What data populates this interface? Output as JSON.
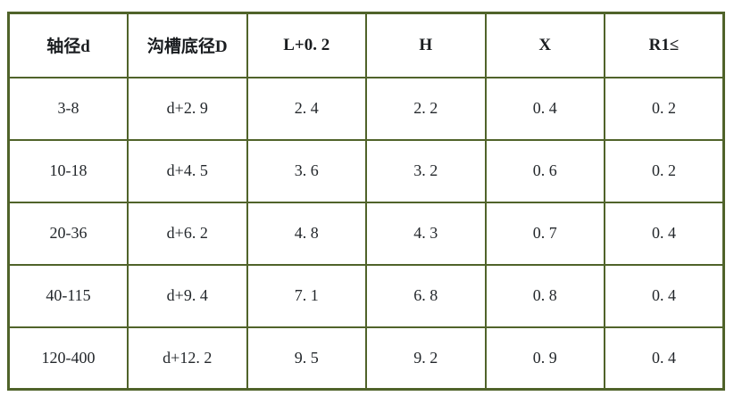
{
  "table": {
    "border_color": "#50632a",
    "text_color": "#23272b",
    "headers": [
      "轴径d",
      "沟槽底径D",
      "L+0. 2",
      "H",
      "X",
      "R1≤"
    ],
    "rows": [
      [
        "3-8",
        "d+2. 9",
        "2. 4",
        "2. 2",
        "0. 4",
        "0. 2"
      ],
      [
        "10-18",
        "d+4. 5",
        "3. 6",
        "3. 2",
        "0. 6",
        "0. 2"
      ],
      [
        "20-36",
        "d+6. 2",
        "4. 8",
        "4. 3",
        "0. 7",
        "0. 4"
      ],
      [
        "40-115",
        "d+9. 4",
        "7. 1",
        "6. 8",
        "0. 8",
        "0. 4"
      ],
      [
        "120-400",
        "d+12. 2",
        "9. 5",
        "9. 2",
        "0. 9",
        "0. 4"
      ]
    ]
  }
}
